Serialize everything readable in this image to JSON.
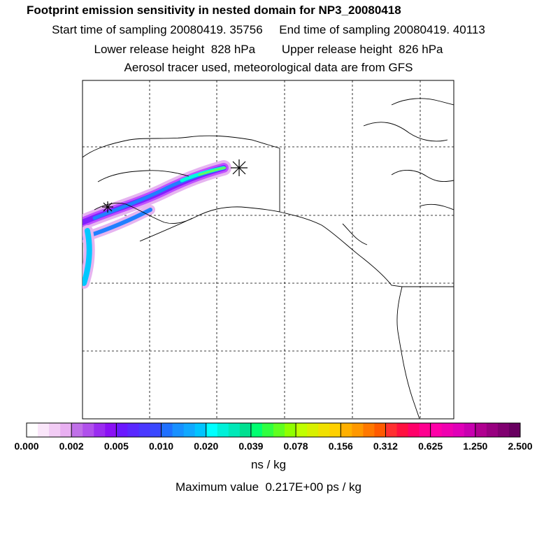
{
  "header": {
    "title": "Footprint emission sensitivity in nested domain for NP3_20080418",
    "line1": "Start time of sampling 20080419. 35756     End time of sampling 20080419. 40113",
    "line2": "Lower release height  828 hPa        Upper release height  826 hPa",
    "line3": "Aerosol tracer used, meteorological data are from GFS"
  },
  "colorbar": {
    "tick_labels": [
      "0.000",
      "0.002",
      "0.005",
      "0.010",
      "0.020",
      "0.039",
      "0.078",
      "0.156",
      "0.312",
      "0.625",
      "1.250",
      "2.500"
    ],
    "units": "ns / kg",
    "colors": [
      "#ffffff",
      "#fae6fa",
      "#f2ccf5",
      "#e9b0f2",
      "#c070e8",
      "#b050ec",
      "#9a2cf0",
      "#8a10f5",
      "#6a18ff",
      "#5a28ff",
      "#4a38ff",
      "#3a48ff",
      "#1f70ff",
      "#1890ff",
      "#10a8ff",
      "#00c4ff",
      "#00ffff",
      "#00f0d8",
      "#00e8b8",
      "#00e090",
      "#00ff70",
      "#30ff40",
      "#60ff20",
      "#90ff00",
      "#c0ff00",
      "#d8f000",
      "#f0e000",
      "#ffd000",
      "#ffb000",
      "#ff9800",
      "#ff7800",
      "#ff5a00",
      "#ff3030",
      "#ff1040",
      "#ff0068",
      "#ff0090",
      "#ff00a8",
      "#f000b0",
      "#e000b8",
      "#c800b0",
      "#b00090",
      "#980080",
      "#800070",
      "#680060"
    ]
  },
  "max_value": "Maximum value  0.217E+00 ps / kg",
  "map": {
    "frame_color": "#000000",
    "plume_colors": [
      "#e6b4f0",
      "#c050ff",
      "#8020ff",
      "#2080ff",
      "#00c8ff",
      "#00ffe0",
      "#60ff60"
    ],
    "receptor_marker": "asterisk-icon",
    "source_marker": "star-icon"
  }
}
